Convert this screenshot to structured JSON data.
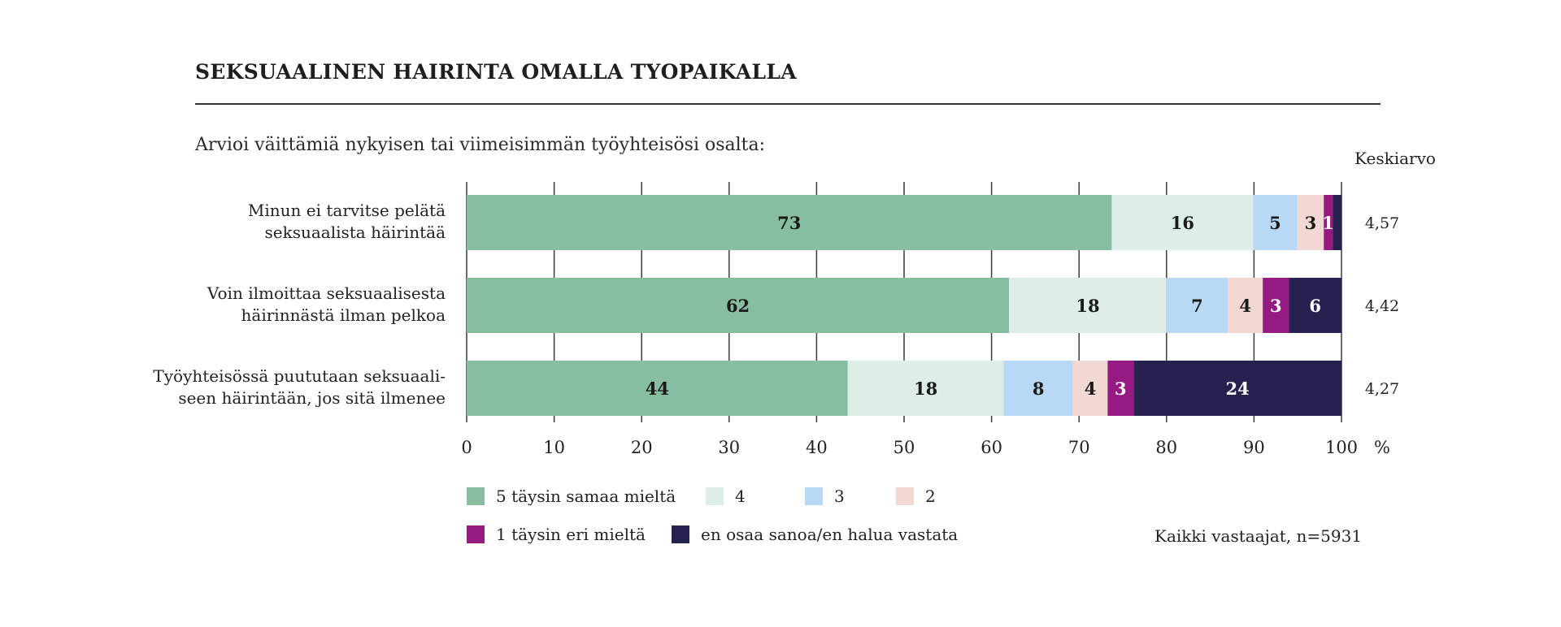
{
  "title": "SEKSUAALINEN HAIRINTA OMALLA TYOPAIKALLA",
  "subtitle": "Arvioi väittämiä nykyisen tai viimeisimmän työyhteisösi osalta:",
  "mean_header": "Keskiarvo",
  "note": "Kaikki vastaajat, n=5931",
  "chart_data": {
    "type": "bar",
    "orientation": "horizontal",
    "stacked": true,
    "categories": [
      [
        "Minun ei tarvitse pelätä",
        "seksuaalista häirintää"
      ],
      [
        "Voin ilmoittaa seksuaalisesta",
        "häirinnästä ilman pelkoa"
      ],
      [
        "Työyhteisössä puututaan seksuaali-",
        "seen häirintään, jos sitä ilmenee"
      ]
    ],
    "series": [
      {
        "name": "5 täysin samaa mieltä",
        "color": "#87bea2",
        "label_color": "#1a1a1a",
        "values": [
          73,
          62,
          44
        ]
      },
      {
        "name": "4",
        "color": "#ddede7",
        "label_color": "#1a1a1a",
        "values": [
          16,
          18,
          18
        ]
      },
      {
        "name": "3",
        "color": "#b7d9f5",
        "label_color": "#1a1a1a",
        "values": [
          5,
          7,
          8
        ]
      },
      {
        "name": "2",
        "color": "#f2d8d2",
        "label_color": "#1a1a1a",
        "values": [
          3,
          4,
          4
        ]
      },
      {
        "name": "1 täysin eri mieltä",
        "color": "#951b82",
        "label_color": "#ffffff",
        "values": [
          1,
          3,
          3
        ]
      },
      {
        "name": "en osaa sanoa/en halua vastata",
        "color": "#262250",
        "label_color": "#ffffff",
        "values": [
          1,
          6,
          24
        ]
      }
    ],
    "hidden_labels": [
      [
        5,
        0
      ]
    ],
    "means": [
      "4,57",
      "4,42",
      "4,27"
    ],
    "xlim": [
      0,
      100
    ],
    "xticks": [
      0,
      10,
      20,
      30,
      40,
      50,
      60,
      70,
      80,
      90,
      100
    ],
    "xunit": "%",
    "grid": true,
    "legend_position": "bottom"
  }
}
